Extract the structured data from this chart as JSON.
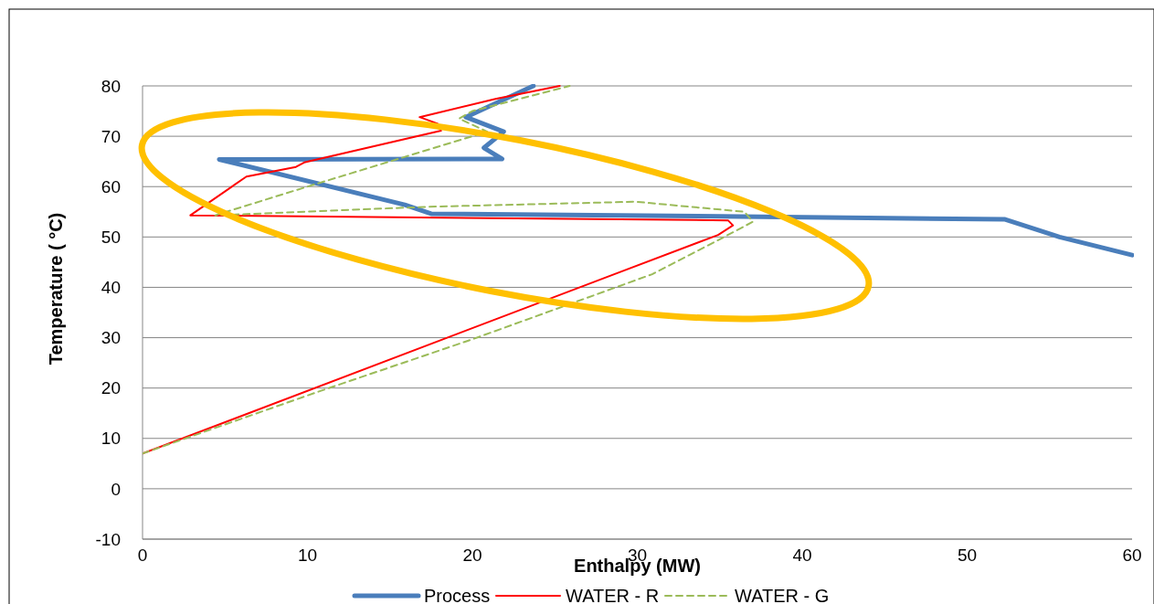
{
  "chart_data": {
    "type": "line",
    "xlabel": "Enthalpy (MW)",
    "ylabel": "Temperature ( °C)",
    "xlim": [
      0,
      60
    ],
    "ylim": [
      -10,
      80
    ],
    "xticks": [
      0,
      10,
      20,
      30,
      40,
      50,
      60
    ],
    "yticks": [
      -10,
      0,
      10,
      20,
      30,
      40,
      50,
      60,
      70,
      80
    ],
    "grid": "y",
    "legend": "bottom",
    "marker": "none",
    "series": [
      {
        "name": "Process",
        "color": "#4a7ebb",
        "line_style": "solid",
        "x": [
          23.7,
          19.6,
          21.9,
          20.7,
          21.8,
          4.65,
          15.9,
          17.5,
          35,
          52.3,
          55.6,
          60
        ],
        "values": [
          80,
          73.8,
          70.9,
          67.7,
          65.5,
          65.4,
          56.4,
          54.6,
          54.1,
          53.5,
          50,
          46.4
        ]
      },
      {
        "name": "WATER - R",
        "color": "#ff0000",
        "line_style": "solid",
        "x": [
          0,
          28.6,
          34.9,
          35.8,
          35.5,
          2.9,
          6.3,
          9.3,
          9.8,
          18.1,
          17.9,
          16.8,
          21.4,
          25.3
        ],
        "values": [
          7,
          42.6,
          50.4,
          52.3,
          53.3,
          54.3,
          62,
          63.9,
          64.8,
          71.1,
          72.5,
          73.8,
          77.4,
          80
        ]
      },
      {
        "name": "WATER - G",
        "color": "#9bbb59",
        "line_style": "dashed",
        "x": [
          0,
          10.5,
          20.1,
          30.9,
          34.8,
          37,
          36.5,
          29.9,
          17.3,
          4.4,
          10,
          20.9,
          19.2,
          20,
          25.9
        ],
        "values": [
          7,
          19.1,
          29.8,
          42.6,
          49.2,
          53,
          55,
          57,
          56,
          54.3,
          60,
          70.9,
          73.5,
          75,
          80
        ]
      }
    ]
  }
}
